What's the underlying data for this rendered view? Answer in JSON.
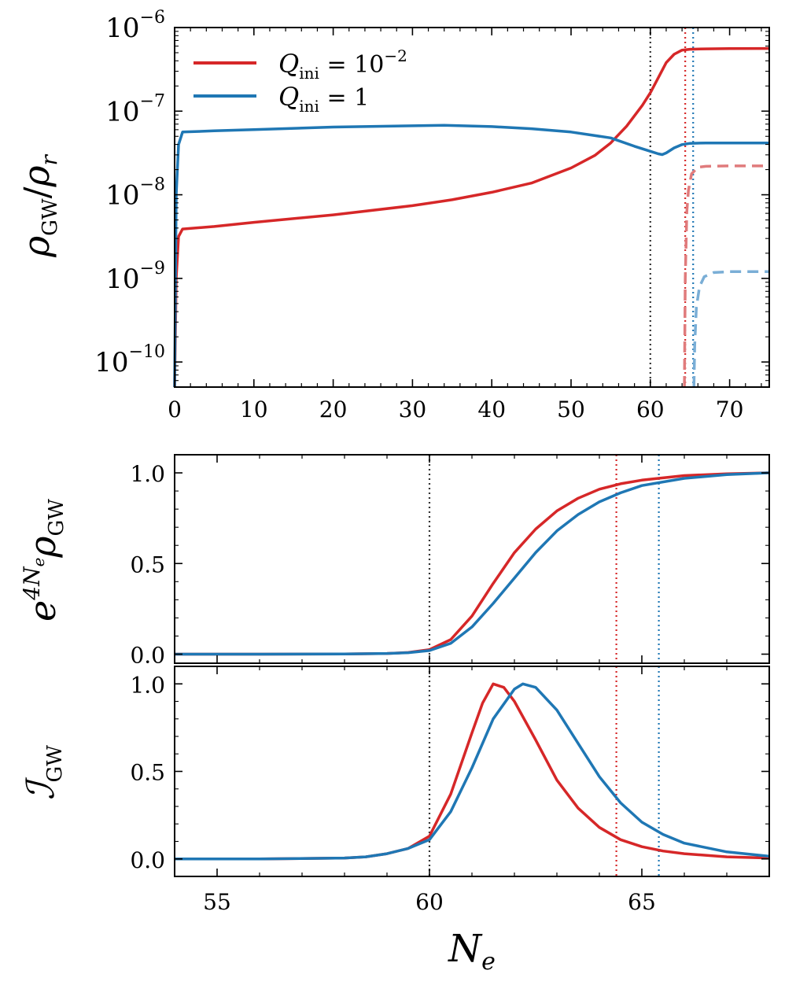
{
  "colors": {
    "red": "#d62728",
    "blue": "#1f77b4",
    "black_vline": "#333333"
  },
  "chart_data": [
    {
      "type": "line",
      "title": "",
      "xlabel": "",
      "ylabel": "ρ_GW / ρ_r",
      "ylabel_main": "ρ",
      "ylabel_sub": "GW",
      "ylabel_slash": "/",
      "ylabel_den": "ρ",
      "ylabel_den_sub": "r",
      "yscale": "log",
      "xlim": [
        0,
        75
      ],
      "ylim_log10": [
        -10.3,
        -6
      ],
      "xticks": [
        0,
        10,
        20,
        30,
        40,
        50,
        60,
        70
      ],
      "xtick_labels": [
        "0",
        "10",
        "20",
        "30",
        "40",
        "50",
        "60",
        "70"
      ],
      "yticks_log10": [
        -10,
        -9,
        -8,
        -7,
        -6
      ],
      "ytick_labels": [
        {
          "base": "10",
          "exp": "−10"
        },
        {
          "base": "10",
          "exp": "−9"
        },
        {
          "base": "10",
          "exp": "−8"
        },
        {
          "base": "10",
          "exp": "−7"
        },
        {
          "base": "10",
          "exp": "−6"
        }
      ],
      "legend": {
        "position": "top-left",
        "entries": [
          {
            "name": "Q",
            "sub": "ini",
            "value": "= 10",
            "exp": "−2",
            "color": "#d62728"
          },
          {
            "name": "Q",
            "sub": "ini",
            "value": "= 1",
            "exp": "",
            "color": "#1f77b4"
          }
        ]
      },
      "vlines": [
        {
          "x": 60,
          "color": "#333333"
        },
        {
          "x": 64.4,
          "color": "#d62728"
        },
        {
          "x": 65.4,
          "color": "#1f77b4"
        }
      ],
      "series": [
        {
          "name": "Q_ini = 10^-2",
          "color": "#d62728",
          "style": "solid",
          "x": [
            0,
            0.2,
            0.5,
            1,
            5,
            10,
            20,
            30,
            35,
            40,
            45,
            50,
            53,
            55,
            57,
            59,
            60,
            61,
            62,
            63,
            64,
            65,
            67,
            70,
            75
          ],
          "log10y": [
            -10.3,
            -9.0,
            -8.5,
            -8.41,
            -8.38,
            -8.33,
            -8.24,
            -8.13,
            -8.06,
            -7.97,
            -7.86,
            -7.68,
            -7.53,
            -7.38,
            -7.18,
            -6.93,
            -6.78,
            -6.6,
            -6.42,
            -6.32,
            -6.27,
            -6.26,
            -6.255,
            -6.252,
            -6.25
          ]
        },
        {
          "name": "Q_ini = 1",
          "color": "#1f77b4",
          "style": "solid",
          "x": [
            0,
            0.2,
            0.5,
            1,
            5,
            10,
            20,
            30,
            34,
            40,
            45,
            50,
            55,
            58,
            60,
            61,
            61.5,
            62,
            63,
            64,
            65,
            67,
            70,
            75
          ],
          "log10y": [
            -10.3,
            -8.0,
            -7.4,
            -7.25,
            -7.235,
            -7.22,
            -7.19,
            -7.175,
            -7.17,
            -7.185,
            -7.21,
            -7.25,
            -7.32,
            -7.42,
            -7.48,
            -7.51,
            -7.52,
            -7.5,
            -7.44,
            -7.4,
            -7.385,
            -7.38,
            -7.38,
            -7.38
          ]
        },
        {
          "name": "Q_ini = 10^-2 (dashed)",
          "color": "#e07b7c",
          "style": "dashed",
          "x": [
            64.3,
            64.4,
            64.6,
            64.8,
            65.2,
            66,
            67,
            70,
            75
          ],
          "log10y": [
            -10.3,
            -9.0,
            -8.2,
            -7.95,
            -7.75,
            -7.67,
            -7.66,
            -7.655,
            -7.655
          ]
        },
        {
          "name": "Q_ini = 1 (dashed)",
          "color": "#7aaed6",
          "style": "dashed",
          "x": [
            65.5,
            65.6,
            65.8,
            66.2,
            66.8,
            68,
            70,
            75
          ],
          "log10y": [
            -10.3,
            -9.8,
            -9.35,
            -9.1,
            -8.98,
            -8.93,
            -8.92,
            -8.92
          ]
        }
      ]
    },
    {
      "type": "line",
      "title": "",
      "xlabel": "",
      "ylabel": "e^{4N_e} ρ_GW",
      "ylabel_e": "e",
      "ylabel_exp": "4N",
      "ylabel_exp_sub": "e",
      "ylabel_rho": "ρ",
      "ylabel_rho_sub": "GW",
      "xlim": [
        54,
        68
      ],
      "ylim": [
        -0.05,
        1.1
      ],
      "xticks": [
        55,
        60,
        65
      ],
      "yticks": [
        0.0,
        0.5,
        1.0
      ],
      "ytick_labels": [
        "0.0",
        "0.5",
        "1.0"
      ],
      "vlines": [
        {
          "x": 60,
          "color": "#333333"
        },
        {
          "x": 64.4,
          "color": "#d62728"
        },
        {
          "x": 65.4,
          "color": "#1f77b4"
        }
      ],
      "series": [
        {
          "name": "Q_ini = 10^-2",
          "color": "#d62728",
          "x": [
            54,
            56,
            58,
            59,
            59.5,
            60,
            60.5,
            61,
            61.5,
            62,
            62.5,
            63,
            63.5,
            64,
            64.5,
            65,
            66,
            67,
            68
          ],
          "y": [
            0,
            0,
            0.001,
            0.004,
            0.009,
            0.025,
            0.08,
            0.21,
            0.39,
            0.56,
            0.69,
            0.79,
            0.86,
            0.91,
            0.94,
            0.96,
            0.985,
            0.995,
            1.0
          ]
        },
        {
          "name": "Q_ini = 1",
          "color": "#1f77b4",
          "x": [
            54,
            56,
            58,
            59,
            59.5,
            60,
            60.5,
            61,
            61.5,
            62,
            62.5,
            63,
            63.5,
            64,
            64.5,
            65,
            66,
            67,
            68
          ],
          "y": [
            0,
            0,
            0.001,
            0.004,
            0.008,
            0.02,
            0.06,
            0.15,
            0.28,
            0.42,
            0.56,
            0.68,
            0.77,
            0.84,
            0.89,
            0.93,
            0.97,
            0.99,
            1.0
          ]
        }
      ]
    },
    {
      "type": "line",
      "title": "",
      "xlabel": "N_e",
      "xlabel_main": "N",
      "xlabel_sub": "e",
      "ylabel": "I_GW",
      "ylabel_main": "ℐ",
      "ylabel_sub": "GW",
      "xlim": [
        54,
        68
      ],
      "ylim": [
        -0.1,
        1.1
      ],
      "xticks": [
        55,
        60,
        65
      ],
      "xtick_labels": [
        "55",
        "60",
        "65"
      ],
      "yticks": [
        0.0,
        0.5,
        1.0
      ],
      "ytick_labels": [
        "0.0",
        "0.5",
        "1.0"
      ],
      "vlines": [
        {
          "x": 60,
          "color": "#333333"
        },
        {
          "x": 64.4,
          "color": "#d62728"
        },
        {
          "x": 65.4,
          "color": "#1f77b4"
        }
      ],
      "series": [
        {
          "name": "Q_ini = 10^-2",
          "color": "#d62728",
          "x": [
            54,
            56,
            58,
            58.5,
            59,
            59.5,
            60,
            60.5,
            61,
            61.25,
            61.5,
            61.75,
            62,
            62.5,
            63,
            63.5,
            64,
            64.5,
            65,
            65.5,
            66,
            67,
            68
          ],
          "y": [
            0,
            0,
            0.005,
            0.012,
            0.03,
            0.06,
            0.13,
            0.37,
            0.72,
            0.89,
            1.0,
            0.98,
            0.9,
            0.68,
            0.45,
            0.29,
            0.18,
            0.11,
            0.07,
            0.045,
            0.03,
            0.012,
            0.005
          ]
        },
        {
          "name": "Q_ini = 1",
          "color": "#1f77b4",
          "x": [
            54,
            56,
            58,
            58.5,
            59,
            59.5,
            60,
            60.5,
            61,
            61.5,
            62,
            62.2,
            62.5,
            63,
            63.5,
            64,
            64.5,
            65,
            65.5,
            66,
            67,
            68
          ],
          "y": [
            0,
            0,
            0.005,
            0.012,
            0.03,
            0.06,
            0.11,
            0.27,
            0.52,
            0.8,
            0.97,
            1.0,
            0.98,
            0.85,
            0.66,
            0.47,
            0.32,
            0.21,
            0.14,
            0.09,
            0.04,
            0.015
          ]
        }
      ]
    }
  ]
}
